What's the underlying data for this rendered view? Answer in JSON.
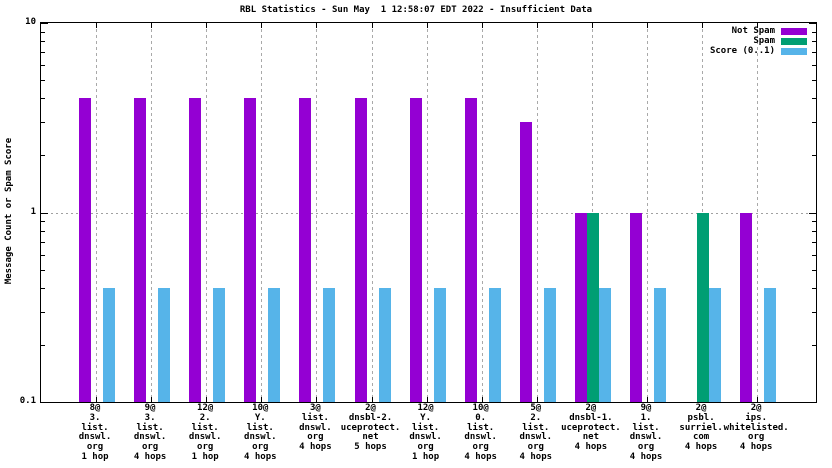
{
  "chart_data": {
    "type": "bar",
    "title": "RBL Statistics - Sun May  1 12:58:07 EDT 2022 - Insufficient Data",
    "ylabel": "Message Count or Spam Score",
    "yscale": "log",
    "ylim": [
      0.1,
      10
    ],
    "yticks": [
      {
        "label": "10",
        "value": 10
      },
      {
        "label": "1",
        "value": 1
      },
      {
        "label": "0.1",
        "value": 0.1
      }
    ],
    "grid": {
      "vertical": "dashed-per-category",
      "horizontal_at": 1
    },
    "legend_position": "top-right-inside",
    "categories": [
      [
        "8@",
        "3.",
        "list.",
        "dnswl.",
        "org",
        "1 hop"
      ],
      [
        "9@",
        "3.",
        "list.",
        "dnswl.",
        "org",
        "4 hops"
      ],
      [
        "12@",
        "2.",
        "list.",
        "dnswl.",
        "org",
        "1 hop"
      ],
      [
        "10@",
        "Y.",
        "list.",
        "dnswl.",
        "org",
        "4 hops"
      ],
      [
        "3@",
        "list.",
        "dnswl.",
        "org",
        "4 hops"
      ],
      [
        "2@",
        "dnsbl-2.",
        "uceprotect.",
        "net",
        "5 hops"
      ],
      [
        "12@",
        "Y.",
        "list.",
        "dnswl.",
        "org",
        "1 hop"
      ],
      [
        "10@",
        "0.",
        "list.",
        "dnswl.",
        "org",
        "4 hops"
      ],
      [
        "5@",
        "2.",
        "list.",
        "dnswl.",
        "org",
        "4 hops"
      ],
      [
        "2@",
        "dnsbl-1.",
        "uceprotect.",
        "net",
        "4 hops"
      ],
      [
        "9@",
        "1.",
        "list.",
        "dnswl.",
        "org",
        "4 hops"
      ],
      [
        "2@",
        "psbl.",
        "surriel.",
        "com",
        "4 hops"
      ],
      [
        "2@",
        "ips.",
        "whitelisted.",
        "org",
        "4 hops"
      ]
    ],
    "series": [
      {
        "name": "Not Spam",
        "color": "#9400d3",
        "values": [
          4,
          4,
          4,
          4,
          4,
          4,
          4,
          4,
          3,
          1,
          1,
          null,
          1
        ]
      },
      {
        "name": "Spam",
        "color": "#009e73",
        "values": [
          null,
          null,
          null,
          null,
          null,
          null,
          null,
          null,
          null,
          1,
          null,
          1,
          null
        ]
      },
      {
        "name": "Score (0..1)",
        "color": "#56b4e9",
        "values": [
          0.4,
          0.4,
          0.4,
          0.4,
          0.4,
          0.4,
          0.4,
          0.4,
          0.4,
          0.4,
          0.4,
          0.4,
          0.4
        ]
      }
    ]
  }
}
